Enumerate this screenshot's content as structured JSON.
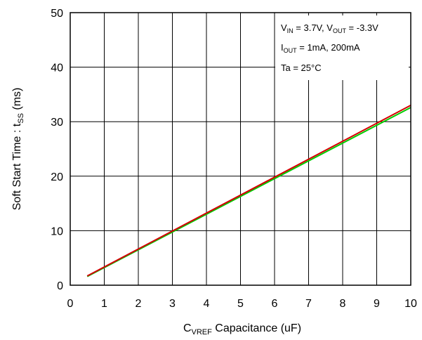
{
  "chart_data": {
    "type": "line",
    "xlabel": {
      "main": "C",
      "sub": "VREF",
      "rest": " Capacitance (uF)"
    },
    "ylabel": {
      "main": "Soft Start Time : t",
      "sub": "SS",
      "rest": " (ms)"
    },
    "xlim": [
      0,
      10
    ],
    "ylim": [
      0,
      50
    ],
    "xticks": [
      "0",
      "1",
      "2",
      "3",
      "4",
      "5",
      "6",
      "7",
      "8",
      "9",
      "10"
    ],
    "yticks": [
      "0",
      "10",
      "20",
      "30",
      "40",
      "50"
    ],
    "grid": true,
    "series": [
      {
        "color": "#d40000",
        "x": [
          0.5,
          10
        ],
        "y": [
          1.7,
          33.0
        ]
      },
      {
        "color": "#00cc00",
        "x": [
          0.5,
          10
        ],
        "y": [
          1.6,
          32.6
        ]
      }
    ],
    "annotation": {
      "line1": {
        "a": "V",
        "a_sub": "IN",
        "b": " = 3.7V, V",
        "b_sub": "OUT",
        "c": " = -3.3V"
      },
      "line2": {
        "a": "I",
        "a_sub": "OUT",
        "b": " = 1mA, 200mA"
      },
      "line3": "Ta = 25°C"
    }
  }
}
